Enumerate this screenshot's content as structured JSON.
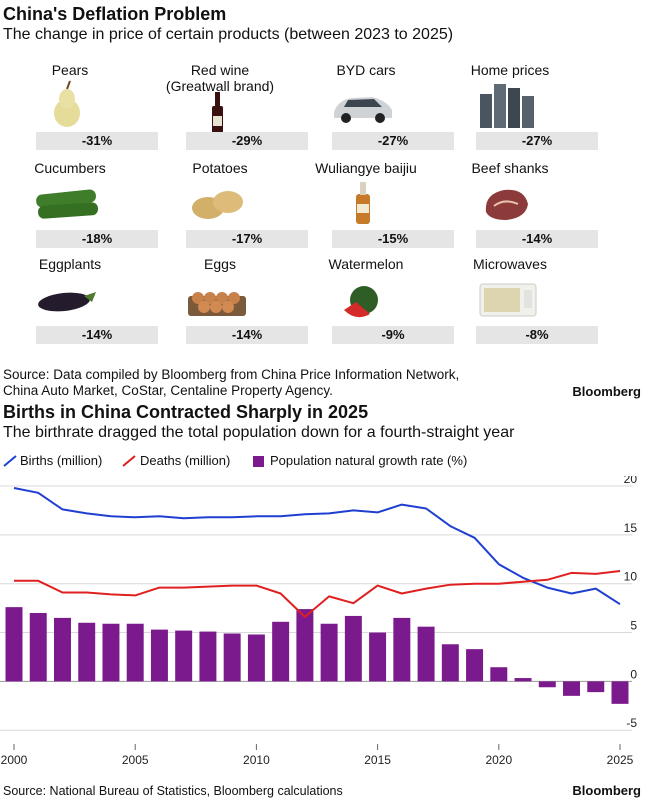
{
  "top": {
    "title": "China's Deflation Problem",
    "subtitle": "The change in price of certain products (between 2023 to 2025)",
    "source_lines": [
      "Source: Data compiled by Bloomberg from China Price Information Network,",
      "China Auto Market, CoStar, Centaline Property Agency."
    ],
    "brand": "Bloomberg",
    "products": [
      {
        "name": "Pears",
        "value": "-31%",
        "icon": "pear-icon"
      },
      {
        "name": "Red wine\n(Greatwall brand)",
        "value": "-29%",
        "icon": "wine-bottle-icon"
      },
      {
        "name": "BYD cars",
        "value": "-27%",
        "icon": "car-icon"
      },
      {
        "name": "Home prices",
        "value": "-27%",
        "icon": "apartment-buildings-icon"
      },
      {
        "name": "Cucumbers",
        "value": "-18%",
        "icon": "cucumber-icon"
      },
      {
        "name": "Potatoes",
        "value": "-17%",
        "icon": "potato-icon"
      },
      {
        "name": "Wuliangye baijiu",
        "value": "-15%",
        "icon": "baijiu-bottle-icon"
      },
      {
        "name": "Beef shanks",
        "value": "-14%",
        "icon": "beef-icon"
      },
      {
        "name": "Eggplants",
        "value": "-14%",
        "icon": "eggplant-icon"
      },
      {
        "name": "Eggs",
        "value": "-14%",
        "icon": "eggs-icon"
      },
      {
        "name": "Watermelon",
        "value": "-9%",
        "icon": "watermelon-icon"
      },
      {
        "name": "Microwaves",
        "value": "-8%",
        "icon": "microwave-icon"
      }
    ]
  },
  "bottom": {
    "title": "Births in China Contracted Sharply in 2025",
    "subtitle": "The birthrate dragged the total population down for a fourth-straight year",
    "source": "Source: National Bureau of Statistics, Bloomberg calculations",
    "brand": "Bloomberg"
  },
  "chart_data": [
    {
      "type": "bar",
      "categories": [
        "Pears",
        "Red wine (Greatwall brand)",
        "BYD cars",
        "Home prices",
        "Cucumbers",
        "Potatoes",
        "Wuliangye baijiu",
        "Beef shanks",
        "Eggplants",
        "Eggs",
        "Watermelon",
        "Microwaves"
      ],
      "values": [
        -31,
        -29,
        -27,
        -27,
        -18,
        -17,
        -15,
        -14,
        -14,
        -14,
        -9,
        -8
      ],
      "title": "China's Deflation Problem",
      "subtitle": "The change in price of certain products (between 2023 to 2025)"
    },
    {
      "type": "line",
      "title": "Births in China Contracted Sharply in 2025",
      "subtitle": "The birthrate dragged the total population down for a fourth-straight year",
      "x": [
        2000,
        2001,
        2002,
        2003,
        2004,
        2005,
        2006,
        2007,
        2008,
        2009,
        2010,
        2011,
        2012,
        2013,
        2014,
        2015,
        2016,
        2017,
        2018,
        2019,
        2020,
        2021,
        2022,
        2023,
        2024,
        2025
      ],
      "series": [
        {
          "name": "Births (million)",
          "type": "line",
          "color": "#1f3fd1",
          "values": [
            19.8,
            19.3,
            17.6,
            17.2,
            16.9,
            16.8,
            16.9,
            16.7,
            16.8,
            16.8,
            16.9,
            16.9,
            17.1,
            17.2,
            17.5,
            17.3,
            18.1,
            17.7,
            15.9,
            14.7,
            12.0,
            10.6,
            9.6,
            9.0,
            9.5,
            7.9
          ]
        },
        {
          "name": "Deaths (million)",
          "type": "line",
          "color": "#e02020",
          "values": [
            10.3,
            10.3,
            9.1,
            9.1,
            8.9,
            8.8,
            9.6,
            9.6,
            9.7,
            9.8,
            9.8,
            9.0,
            6.6,
            8.7,
            8.0,
            9.8,
            9.0,
            9.5,
            9.9,
            10.0,
            10.0,
            10.2,
            10.4,
            11.1,
            11.0,
            11.3
          ]
        },
        {
          "name": "Population natural growth rate (%)",
          "type": "bar",
          "color": "#7b1a8c",
          "values": [
            7.6,
            7.0,
            6.5,
            6.0,
            5.9,
            5.9,
            5.3,
            5.2,
            5.1,
            4.9,
            4.8,
            6.1,
            7.4,
            5.9,
            6.7,
            5.0,
            6.5,
            5.6,
            3.8,
            3.3,
            1.45,
            0.34,
            -0.6,
            -1.48,
            -1.1,
            -2.3
          ]
        }
      ],
      "ylim": [
        -6,
        20
      ],
      "yticks": [
        -5,
        0,
        5,
        10,
        15,
        20
      ],
      "xticks": [
        2000,
        2005,
        2010,
        2015,
        2020,
        2025
      ],
      "legend": "top-left",
      "grid": true
    }
  ]
}
